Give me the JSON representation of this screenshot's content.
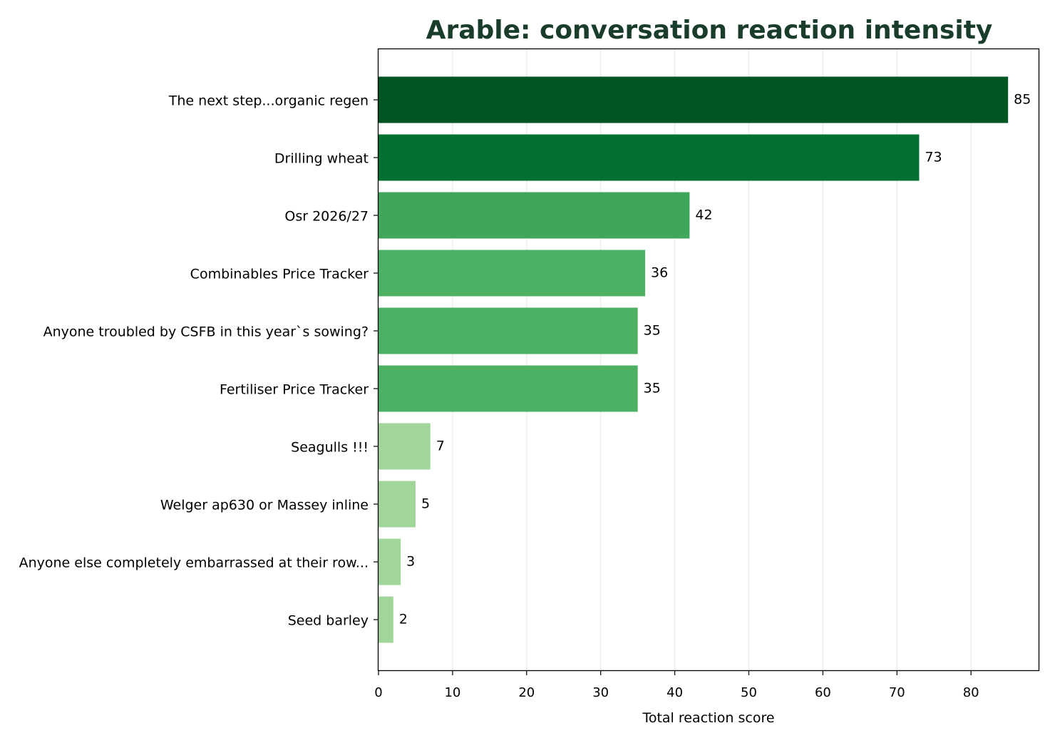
{
  "chart_data": {
    "type": "bar",
    "orientation": "horizontal",
    "title": "Arable: conversation reaction intensity",
    "xlabel": "Total reaction score",
    "ylabel": "",
    "xlim": [
      0,
      89
    ],
    "xticks": [
      0,
      10,
      20,
      30,
      40,
      50,
      60,
      70,
      80
    ],
    "grid": "vertical",
    "legend": "none",
    "categories": [
      "The next step...organic regen",
      "Drilling wheat",
      "Osr 2026/27",
      "Combinables Price Tracker",
      "Anyone troubled by CSFB in this year`s sowing?",
      "Fertiliser Price Tracker",
      "Seagulls !!!",
      "Welger ap630 or Massey inline",
      "Anyone else completely embarrassed at their row...",
      "Seed barley"
    ],
    "values": [
      85,
      73,
      42,
      36,
      35,
      35,
      7,
      5,
      3,
      2
    ],
    "bar_colors": [
      "#005522",
      "#047032",
      "#40a75a",
      "#4db163",
      "#4db163",
      "#4db163",
      "#a0d699",
      "#a0d699",
      "#a0d699",
      "#a0d699"
    ],
    "colors": {
      "title": "#1a3d2b",
      "grid": "#ebebeb",
      "axis": "#000000"
    }
  }
}
